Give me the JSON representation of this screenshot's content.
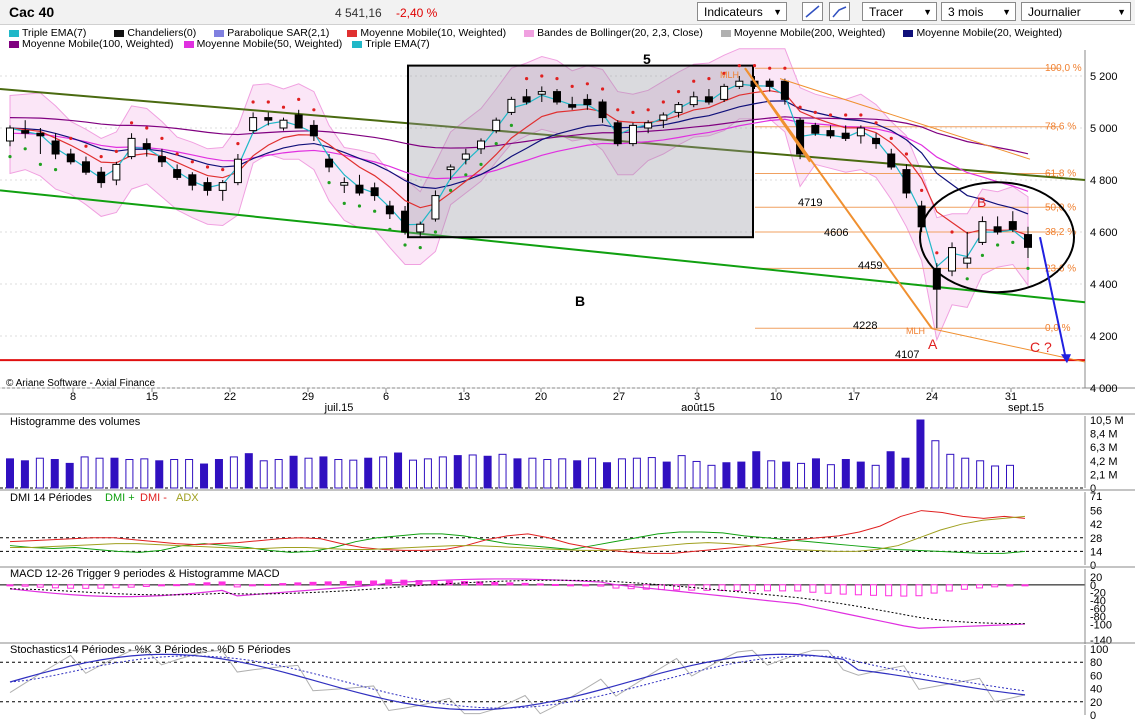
{
  "header": {
    "title": "Cac 40",
    "price": "4 541,16",
    "change": "-2,40 %",
    "indicators_label": "Indicateurs",
    "draw_label": "Tracer",
    "period_value": "3 mois",
    "interval_value": "Journalier"
  },
  "legend": {
    "row1": [
      "Triple EMA(7)",
      "Chandeliers(0)",
      "Parabolique SAR(2,1)",
      "Moyenne Mobile(10, Weighted)",
      "Bandes de Bollinger(20, 2,3, Close)",
      "Moyenne Mobile(200, Weighted)",
      "Moyenne Mobile(20, Weighted)"
    ],
    "row2": [
      "Moyenne Mobile(100, Weighted)",
      "Moyenne Mobile(50, Weighted)",
      "Triple EMA(7)"
    ],
    "colors": [
      "#20b8c8",
      "#111111",
      "#8080e0",
      "#e03030",
      "#f0a0e0",
      "#b0b0b0",
      "#10107a",
      "#800080",
      "#e030e0",
      "#20b8c8"
    ]
  },
  "copyright": "© Ariane Software - Axial Finance",
  "chart_data": [
    {
      "type": "candlestick",
      "name": "Cac 40",
      "x_ticks": [
        "8",
        "15",
        "22",
        "29",
        "6",
        "13",
        "20",
        "27",
        "3",
        "10",
        "17",
        "24",
        "31"
      ],
      "month_labels": [
        "juil.15",
        "août15",
        "sept.15"
      ],
      "y_ticks": [
        "5 200",
        "5 000",
        "4 800",
        "4 600",
        "4 400",
        "4 200",
        "4 000"
      ],
      "ylim": [
        4000,
        5300
      ],
      "candles": [
        {
          "o": 4950,
          "h": 5010,
          "l": 4930,
          "c": 5000
        },
        {
          "o": 4990,
          "h": 5030,
          "l": 4960,
          "c": 4980
        },
        {
          "o": 4980,
          "h": 5000,
          "l": 4900,
          "c": 4970
        },
        {
          "o": 4950,
          "h": 4980,
          "l": 4880,
          "c": 4900
        },
        {
          "o": 4900,
          "h": 4920,
          "l": 4860,
          "c": 4870
        },
        {
          "o": 4870,
          "h": 4890,
          "l": 4820,
          "c": 4830
        },
        {
          "o": 4830,
          "h": 4850,
          "l": 4770,
          "c": 4790
        },
        {
          "o": 4800,
          "h": 4870,
          "l": 4780,
          "c": 4860
        },
        {
          "o": 4890,
          "h": 4980,
          "l": 4880,
          "c": 4960
        },
        {
          "o": 4940,
          "h": 4960,
          "l": 4890,
          "c": 4920
        },
        {
          "o": 4890,
          "h": 4920,
          "l": 4850,
          "c": 4870
        },
        {
          "o": 4840,
          "h": 4860,
          "l": 4800,
          "c": 4810
        },
        {
          "o": 4820,
          "h": 4830,
          "l": 4760,
          "c": 4780
        },
        {
          "o": 4790,
          "h": 4810,
          "l": 4740,
          "c": 4760
        },
        {
          "o": 4760,
          "h": 4800,
          "l": 4720,
          "c": 4790
        },
        {
          "o": 4790,
          "h": 4900,
          "l": 4780,
          "c": 4880
        },
        {
          "o": 4990,
          "h": 5060,
          "l": 4980,
          "c": 5040
        },
        {
          "o": 5040,
          "h": 5060,
          "l": 5010,
          "c": 5030
        },
        {
          "o": 5000,
          "h": 5040,
          "l": 4990,
          "c": 5030
        },
        {
          "o": 5050,
          "h": 5070,
          "l": 5000,
          "c": 5000
        },
        {
          "o": 5010,
          "h": 5030,
          "l": 4950,
          "c": 4970
        },
        {
          "o": 4880,
          "h": 4900,
          "l": 4830,
          "c": 4850
        },
        {
          "o": 4780,
          "h": 4810,
          "l": 4750,
          "c": 4790
        },
        {
          "o": 4780,
          "h": 4820,
          "l": 4740,
          "c": 4750
        },
        {
          "o": 4770,
          "h": 4790,
          "l": 4720,
          "c": 4740
        },
        {
          "o": 4700,
          "h": 4720,
          "l": 4650,
          "c": 4670
        },
        {
          "o": 4680,
          "h": 4700,
          "l": 4590,
          "c": 4600
        },
        {
          "o": 4600,
          "h": 4640,
          "l": 4580,
          "c": 4630
        },
        {
          "o": 4650,
          "h": 4760,
          "l": 4640,
          "c": 4740
        },
        {
          "o": 4840,
          "h": 4860,
          "l": 4800,
          "c": 4850
        },
        {
          "o": 4880,
          "h": 4920,
          "l": 4860,
          "c": 4900
        },
        {
          "o": 4920,
          "h": 4960,
          "l": 4900,
          "c": 4950
        },
        {
          "o": 4990,
          "h": 5040,
          "l": 4980,
          "c": 5030
        },
        {
          "o": 5060,
          "h": 5120,
          "l": 5050,
          "c": 5110
        },
        {
          "o": 5120,
          "h": 5150,
          "l": 5090,
          "c": 5100
        },
        {
          "o": 5130,
          "h": 5160,
          "l": 5100,
          "c": 5140
        },
        {
          "o": 5140,
          "h": 5150,
          "l": 5090,
          "c": 5100
        },
        {
          "o": 5090,
          "h": 5120,
          "l": 5070,
          "c": 5080
        },
        {
          "o": 5110,
          "h": 5130,
          "l": 5070,
          "c": 5090
        },
        {
          "o": 5100,
          "h": 5110,
          "l": 5020,
          "c": 5040
        },
        {
          "o": 5020,
          "h": 5030,
          "l": 4930,
          "c": 4940
        },
        {
          "o": 4940,
          "h": 5020,
          "l": 4930,
          "c": 5010
        },
        {
          "o": 5000,
          "h": 5030,
          "l": 4980,
          "c": 5020
        },
        {
          "o": 5030,
          "h": 5060,
          "l": 5000,
          "c": 5050
        },
        {
          "o": 5060,
          "h": 5100,
          "l": 5040,
          "c": 5090
        },
        {
          "o": 5090,
          "h": 5140,
          "l": 5080,
          "c": 5120
        },
        {
          "o": 5120,
          "h": 5150,
          "l": 5090,
          "c": 5100
        },
        {
          "o": 5110,
          "h": 5170,
          "l": 5100,
          "c": 5160
        },
        {
          "o": 5160,
          "h": 5200,
          "l": 5150,
          "c": 5180
        },
        {
          "o": 5180,
          "h": 5200,
          "l": 5150,
          "c": 5160
        },
        {
          "o": 5180,
          "h": 5190,
          "l": 5140,
          "c": 5160
        },
        {
          "o": 5180,
          "h": 5190,
          "l": 5090,
          "c": 5110
        },
        {
          "o": 5030,
          "h": 5040,
          "l": 4880,
          "c": 4900
        },
        {
          "o": 5010,
          "h": 5020,
          "l": 4970,
          "c": 4980
        },
        {
          "o": 4990,
          "h": 5010,
          "l": 4960,
          "c": 4970
        },
        {
          "o": 4980,
          "h": 5010,
          "l": 4950,
          "c": 4960
        },
        {
          "o": 4970,
          "h": 5010,
          "l": 4940,
          "c": 5000
        },
        {
          "o": 4960,
          "h": 4980,
          "l": 4920,
          "c": 4940
        },
        {
          "o": 4900,
          "h": 4920,
          "l": 4840,
          "c": 4850
        },
        {
          "o": 4840,
          "h": 4860,
          "l": 4730,
          "c": 4750
        },
        {
          "o": 4700,
          "h": 4720,
          "l": 4600,
          "c": 4620
        },
        {
          "o": 4460,
          "h": 4480,
          "l": 4230,
          "c": 4380
        },
        {
          "o": 4450,
          "h": 4560,
          "l": 4430,
          "c": 4540
        },
        {
          "o": 4480,
          "h": 4600,
          "l": 4460,
          "c": 4500
        },
        {
          "o": 4560,
          "h": 4660,
          "l": 4550,
          "c": 4640
        },
        {
          "o": 4620,
          "h": 4660,
          "l": 4590,
          "c": 4600
        },
        {
          "o": 4640,
          "h": 4680,
          "l": 4600,
          "c": 4610
        },
        {
          "o": 4590,
          "h": 4620,
          "l": 4500,
          "c": 4541
        }
      ],
      "annotations": [
        "5",
        "B",
        "A",
        "B",
        "C ?",
        "4719",
        "4606",
        "4459",
        "4228",
        "4107",
        "MLH",
        "MLH"
      ],
      "fibonacci": [
        {
          "label": "100,0 %",
          "value": 5230
        },
        {
          "label": "78,6 %",
          "value": 5005
        },
        {
          "label": "61,8 %",
          "value": 4825
        },
        {
          "label": "50,0 %",
          "value": 4695
        },
        {
          "label": "38,2 %",
          "value": 4600
        },
        {
          "label": "23,6 %",
          "value": 4460
        },
        {
          "label": "0,0 %",
          "value": 4230
        }
      ],
      "support_level": 4107
    },
    {
      "type": "bar",
      "title": "Histogramme des volumes",
      "y_ticks": [
        "10,5 M",
        "8,4 M",
        "6,3 M",
        "4,2 M",
        "2,1 M",
        "0"
      ],
      "ylim": [
        0,
        10.5
      ],
      "values": [
        4.5,
        4.2,
        4.6,
        4.4,
        3.8,
        4.8,
        4.6,
        4.6,
        4.4,
        4.5,
        4.2,
        4.4,
        4.4,
        3.7,
        4.4,
        4.8,
        5.3,
        4.2,
        4.4,
        4.9,
        4.6,
        4.8,
        4.4,
        4.3,
        4.6,
        4.8,
        5.4,
        4.3,
        4.5,
        4.8,
        5.0,
        5.1,
        4.9,
        5.2,
        4.5,
        4.6,
        4.4,
        4.5,
        4.2,
        4.6,
        3.9,
        4.5,
        4.6,
        4.7,
        4.0,
        5.0,
        4.1,
        3.5,
        3.9,
        4.0,
        5.6,
        4.2,
        4.0,
        3.8,
        4.5,
        3.6,
        4.4,
        4.0,
        3.5,
        5.6,
        4.6,
        10.5,
        7.3,
        5.2,
        4.6,
        4.2,
        3.4,
        3.5
      ],
      "filled": [
        1,
        1,
        0,
        1,
        1,
        0,
        0,
        1,
        0,
        0,
        1,
        0,
        0,
        1,
        1,
        0,
        1,
        0,
        0,
        1,
        0,
        1,
        0,
        0,
        1,
        0,
        1,
        0,
        0,
        0,
        1,
        0,
        1,
        0,
        1,
        0,
        0,
        0,
        1,
        0,
        1,
        0,
        0,
        0,
        1,
        0,
        0,
        0,
        1,
        1,
        1,
        0,
        1,
        0,
        1,
        0,
        1,
        1,
        0,
        1,
        1,
        1,
        0,
        0,
        0,
        0,
        0,
        0
      ]
    },
    {
      "type": "line",
      "title": "DMI 14 Périodes",
      "series": [
        {
          "name": "DMI +",
          "color": "#10a010",
          "values": [
            20,
            18,
            17,
            18,
            16,
            14,
            13,
            15,
            20,
            22,
            20,
            18,
            15,
            13,
            14,
            18,
            24,
            28,
            30,
            32,
            32,
            30,
            26,
            22,
            20,
            18,
            16,
            20,
            24,
            28,
            32,
            34,
            34,
            33,
            30,
            28,
            26,
            24,
            22,
            20,
            18,
            16,
            15,
            14,
            13,
            12,
            12,
            14
          ]
        },
        {
          "name": "DMI -",
          "color": "#e02020",
          "values": [
            24,
            25,
            26,
            27,
            28,
            28,
            26,
            24,
            22,
            21,
            22,
            23,
            25,
            27,
            28,
            27,
            22,
            18,
            16,
            15,
            15,
            16,
            20,
            26,
            30,
            32,
            28,
            22,
            18,
            15,
            13,
            12,
            12,
            14,
            16,
            18,
            20,
            23,
            26,
            28,
            30,
            34,
            40,
            50,
            56,
            54,
            50,
            48,
            50,
            48
          ]
        },
        {
          "name": "ADX",
          "color": "#a0a020",
          "values": [
            18,
            18,
            19,
            20,
            21,
            22,
            22,
            21,
            20,
            19,
            18,
            17,
            17,
            18,
            18,
            17,
            16,
            16,
            17,
            18,
            19,
            20,
            20,
            19,
            18,
            17,
            16,
            15,
            15,
            16,
            18,
            20,
            22,
            23,
            22,
            20,
            18,
            16,
            15,
            14,
            14,
            16,
            20,
            28,
            36,
            42,
            46,
            48,
            50
          ]
        }
      ],
      "y_ticks": [
        "71",
        "56",
        "42",
        "28",
        "14",
        "0"
      ],
      "ylim": [
        0,
        71
      ]
    },
    {
      "type": "line",
      "title": "MACD 12-26   Trigger 9 periodes & Histogramme MACD",
      "y_ticks": [
        "20",
        "0",
        "-20",
        "-40",
        "-60",
        "-80",
        "-100",
        "-140"
      ],
      "ylim": [
        -150,
        30
      ]
    },
    {
      "type": "line",
      "title": "Stochastics14 Périodes  -  %K 3 Périodes  -  %D 5 Périodes",
      "y_ticks": [
        "100",
        "80",
        "60",
        "40",
        "20",
        "0"
      ],
      "ylim": [
        0,
        100
      ]
    }
  ]
}
